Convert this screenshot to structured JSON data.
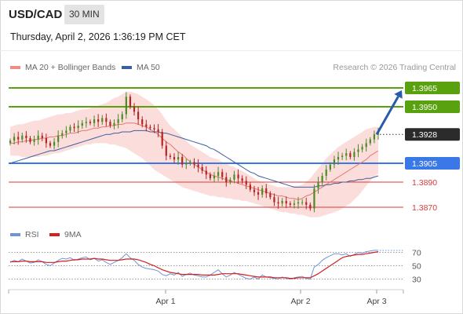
{
  "header": {
    "symbol": "USD/CAD",
    "timeframe": "30 MIN",
    "datetime": "Thursday, April 2, 2026 1:36:19 PM CET"
  },
  "legend": {
    "items": [
      {
        "label": "MA 20 + Bollinger Bands",
        "color": "#f28b82"
      },
      {
        "label": "MA 50",
        "color": "#3d5f9e"
      }
    ],
    "credit": "Research © 2026 Trading Central"
  },
  "indicator_legend": {
    "items": [
      {
        "label": "RSI",
        "color": "#6f93d8"
      },
      {
        "label": "9MA",
        "color": "#d61f1f"
      }
    ]
  },
  "chart_data": [
    {
      "type": "candlestick",
      "title": "USD/CAD",
      "ylim": [
        1.3855,
        1.3975
      ],
      "x_ticks": [
        "Apr 1",
        "Apr 2",
        "Apr 3"
      ],
      "current_price": "1.3928",
      "levels": [
        {
          "value": "1.3965",
          "role": "resistance",
          "color": "#5aa10f",
          "style": "label-box"
        },
        {
          "value": "1.3950",
          "role": "resistance",
          "color": "#5aa10f",
          "style": "label-box"
        },
        {
          "value": "1.3905",
          "role": "pivot",
          "color": "#3b78e7",
          "style": "label-box"
        },
        {
          "value": "1.3890",
          "role": "support",
          "color": "#d93a3a",
          "style": "text"
        },
        {
          "value": "1.3870",
          "role": "support",
          "color": "#d93a3a",
          "style": "text"
        }
      ],
      "series_close": [
        1.3923,
        1.3926,
        1.3924,
        1.3927,
        1.3925,
        1.3922,
        1.3924,
        1.3927,
        1.3925,
        1.3921,
        1.3919,
        1.3922,
        1.3927,
        1.3929,
        1.3931,
        1.3934,
        1.3933,
        1.3935,
        1.3937,
        1.3938,
        1.3937,
        1.394,
        1.3938,
        1.3941,
        1.3938,
        1.3935,
        1.3937,
        1.394,
        1.3944,
        1.3958,
        1.395,
        1.3946,
        1.394,
        1.3936,
        1.3934,
        1.3933,
        1.3932,
        1.393,
        1.3919,
        1.3911,
        1.391,
        1.3908,
        1.391,
        1.3904,
        1.3905,
        1.3906,
        1.3904,
        1.3902,
        1.3899,
        1.3896,
        1.3893,
        1.3895,
        1.3898,
        1.3894,
        1.389,
        1.3892,
        1.3896,
        1.3893,
        1.3891,
        1.3888,
        1.3884,
        1.3882,
        1.388,
        1.3885,
        1.3881,
        1.3878,
        1.3874,
        1.3873,
        1.3875,
        1.3873,
        1.3872,
        1.3873,
        1.3874,
        1.3874,
        1.3872,
        1.3869,
        1.3885,
        1.389,
        1.3895,
        1.39,
        1.3904,
        1.3908,
        1.391,
        1.3911,
        1.3913,
        1.391,
        1.3914,
        1.3916,
        1.3918,
        1.3921,
        1.3924,
        1.3928,
        1.3929
      ],
      "ma20": [
        1.3921,
        1.3921,
        1.3922,
        1.3922,
        1.3923,
        1.3923,
        1.3924,
        1.3924,
        1.3925,
        1.3925,
        1.3926,
        1.3926,
        1.3927,
        1.3927,
        1.3928,
        1.3929,
        1.3929,
        1.393,
        1.3931,
        1.3931,
        1.3932,
        1.3933,
        1.3933,
        1.3934,
        1.3934,
        1.3935,
        1.3935,
        1.3936,
        1.3936,
        1.3937,
        1.3937,
        1.3937,
        1.3936,
        1.3935,
        1.3934,
        1.3932,
        1.393,
        1.3928,
        1.3925,
        1.3922,
        1.392,
        1.3917,
        1.3914,
        1.3912,
        1.3909,
        1.3906,
        1.3904,
        1.3902,
        1.39,
        1.3898,
        1.3896,
        1.3895,
        1.3894,
        1.3893,
        1.3892,
        1.3891,
        1.389,
        1.3889,
        1.3888,
        1.3887,
        1.3886,
        1.3885,
        1.3884,
        1.3883,
        1.3882,
        1.3881,
        1.388,
        1.3879,
        1.3879,
        1.3878,
        1.3877,
        1.3877,
        1.3876,
        1.3877,
        1.3879,
        1.388,
        1.3882,
        1.3884,
        1.3886,
        1.3888,
        1.389,
        1.3892,
        1.3894,
        1.3896,
        1.3898,
        1.39,
        1.3902,
        1.3904,
        1.3906,
        1.3908,
        1.3911,
        1.3913,
        1.3915
      ],
      "bb_upper": [
        1.3934,
        1.3935,
        1.3936,
        1.3936,
        1.3937,
        1.3938,
        1.3939,
        1.3939,
        1.394,
        1.3941,
        1.3942,
        1.3943,
        1.3944,
        1.3944,
        1.3945,
        1.3945,
        1.3946,
        1.3947,
        1.3948,
        1.3948,
        1.3949,
        1.395,
        1.3951,
        1.3952,
        1.3953,
        1.3955,
        1.3957,
        1.3958,
        1.396,
        1.3962,
        1.3962,
        1.3961,
        1.396,
        1.3958,
        1.3956,
        1.3954,
        1.3951,
        1.3948,
        1.3944,
        1.3939,
        1.3935,
        1.3932,
        1.3929,
        1.3926,
        1.3923,
        1.392,
        1.3918,
        1.3916,
        1.3914,
        1.3912,
        1.391,
        1.3909,
        1.3908,
        1.3906,
        1.3905,
        1.3903,
        1.3902,
        1.39,
        1.3899,
        1.3897,
        1.3895,
        1.3893,
        1.3891,
        1.389,
        1.3889,
        1.3888,
        1.3887,
        1.3886,
        1.3886,
        1.3886,
        1.3886,
        1.3887,
        1.3887,
        1.3888,
        1.389,
        1.3893,
        1.3897,
        1.3901,
        1.3905,
        1.3909,
        1.3912,
        1.3915,
        1.3918,
        1.392,
        1.3922,
        1.3924,
        1.3926,
        1.3928,
        1.393,
        1.3932,
        1.3933,
        1.3934,
        1.3934
      ],
      "bb_lower": [
        1.3911,
        1.3911,
        1.3911,
        1.391,
        1.391,
        1.391,
        1.391,
        1.391,
        1.3911,
        1.3911,
        1.3912,
        1.3913,
        1.3913,
        1.3914,
        1.3915,
        1.3916,
        1.3917,
        1.3918,
        1.3919,
        1.392,
        1.392,
        1.3921,
        1.3921,
        1.3921,
        1.3921,
        1.392,
        1.392,
        1.3919,
        1.3918,
        1.3917,
        1.3915,
        1.3913,
        1.3911,
        1.3909,
        1.3906,
        1.3903,
        1.39,
        1.3898,
        1.3896,
        1.3894,
        1.3892,
        1.389,
        1.3888,
        1.3886,
        1.3885,
        1.3884,
        1.3883,
        1.3882,
        1.3881,
        1.388,
        1.3879,
        1.3879,
        1.3878,
        1.3878,
        1.3877,
        1.3877,
        1.3876,
        1.3876,
        1.3875,
        1.3875,
        1.3874,
        1.3873,
        1.3872,
        1.3871,
        1.387,
        1.3869,
        1.3868,
        1.3867,
        1.3866,
        1.3866,
        1.3865,
        1.3865,
        1.3864,
        1.3864,
        1.3863,
        1.3862,
        1.3862,
        1.3862,
        1.3863,
        1.3864,
        1.3865,
        1.3866,
        1.3867,
        1.3869,
        1.3871,
        1.3873,
        1.3876,
        1.3879,
        1.3883,
        1.3887,
        1.3891,
        1.3894,
        1.3897
      ],
      "ma50": [
        1.3905,
        1.3906,
        1.3907,
        1.3908,
        1.3909,
        1.391,
        1.3911,
        1.3912,
        1.3913,
        1.3914,
        1.3915,
        1.3915,
        1.3916,
        1.3917,
        1.3918,
        1.3919,
        1.392,
        1.3921,
        1.3922,
        1.3923,
        1.3924,
        1.3925,
        1.3926,
        1.3927,
        1.3928,
        1.3928,
        1.3929,
        1.3929,
        1.393,
        1.393,
        1.393,
        1.3931,
        1.3931,
        1.3931,
        1.3931,
        1.393,
        1.393,
        1.393,
        1.3929,
        1.3929,
        1.3928,
        1.3927,
        1.3926,
        1.3925,
        1.3924,
        1.3923,
        1.3922,
        1.3921,
        1.392,
        1.3919,
        1.3917,
        1.3916,
        1.3914,
        1.3912,
        1.391,
        1.3908,
        1.3906,
        1.3904,
        1.3902,
        1.39,
        1.3898,
        1.3897,
        1.3895,
        1.3894,
        1.3893,
        1.3892,
        1.3891,
        1.389,
        1.3889,
        1.3888,
        1.3887,
        1.3886,
        1.3886,
        1.3886,
        1.3886,
        1.3886,
        1.3886,
        1.3887,
        1.3887,
        1.3888,
        1.3888,
        1.3889,
        1.3889,
        1.389,
        1.389,
        1.3891,
        1.3891,
        1.3892,
        1.3892,
        1.3893,
        1.3893,
        1.3894,
        1.3895
      ]
    },
    {
      "type": "line",
      "title": "RSI",
      "ylim": [
        20,
        80
      ],
      "y_ticks": [
        "70",
        "50",
        "30"
      ],
      "series": [
        {
          "name": "RSI",
          "values": [
            55,
            58,
            56,
            60,
            57,
            54,
            55,
            59,
            56,
            52,
            50,
            54,
            58,
            61,
            60,
            62,
            58,
            60,
            62,
            63,
            59,
            61,
            57,
            59,
            55,
            52,
            55,
            58,
            62,
            68,
            62,
            58,
            52,
            48,
            46,
            45,
            44,
            42,
            37,
            35,
            38,
            36,
            40,
            34,
            37,
            39,
            36,
            35,
            33,
            33,
            36,
            40,
            44,
            38,
            33,
            36,
            40,
            37,
            34,
            31,
            30,
            33,
            30,
            36,
            33,
            32,
            31,
            30,
            33,
            31,
            30,
            32,
            33,
            34,
            31,
            30,
            48,
            52,
            58,
            62,
            65,
            68,
            68,
            66,
            68,
            64,
            67,
            70,
            69,
            71,
            72,
            73,
            73
          ]
        },
        {
          "name": "9MA",
          "values": [
            56,
            56,
            56,
            57,
            57,
            56,
            56,
            56,
            56,
            55,
            55,
            55,
            56,
            57,
            57,
            58,
            59,
            59,
            60,
            60,
            60,
            61,
            60,
            60,
            59,
            58,
            58,
            58,
            59,
            60,
            60,
            60,
            59,
            57,
            55,
            52,
            50,
            47,
            44,
            42,
            40,
            39,
            38,
            37,
            37,
            37,
            37,
            37,
            36,
            36,
            36,
            36,
            37,
            38,
            38,
            38,
            38,
            38,
            37,
            36,
            35,
            34,
            33,
            33,
            33,
            33,
            32,
            32,
            32,
            32,
            31,
            31,
            32,
            32,
            32,
            32,
            35,
            38,
            42,
            46,
            50,
            54,
            58,
            62,
            64,
            65,
            66,
            67,
            67,
            68,
            69,
            70,
            71
          ]
        }
      ]
    }
  ]
}
